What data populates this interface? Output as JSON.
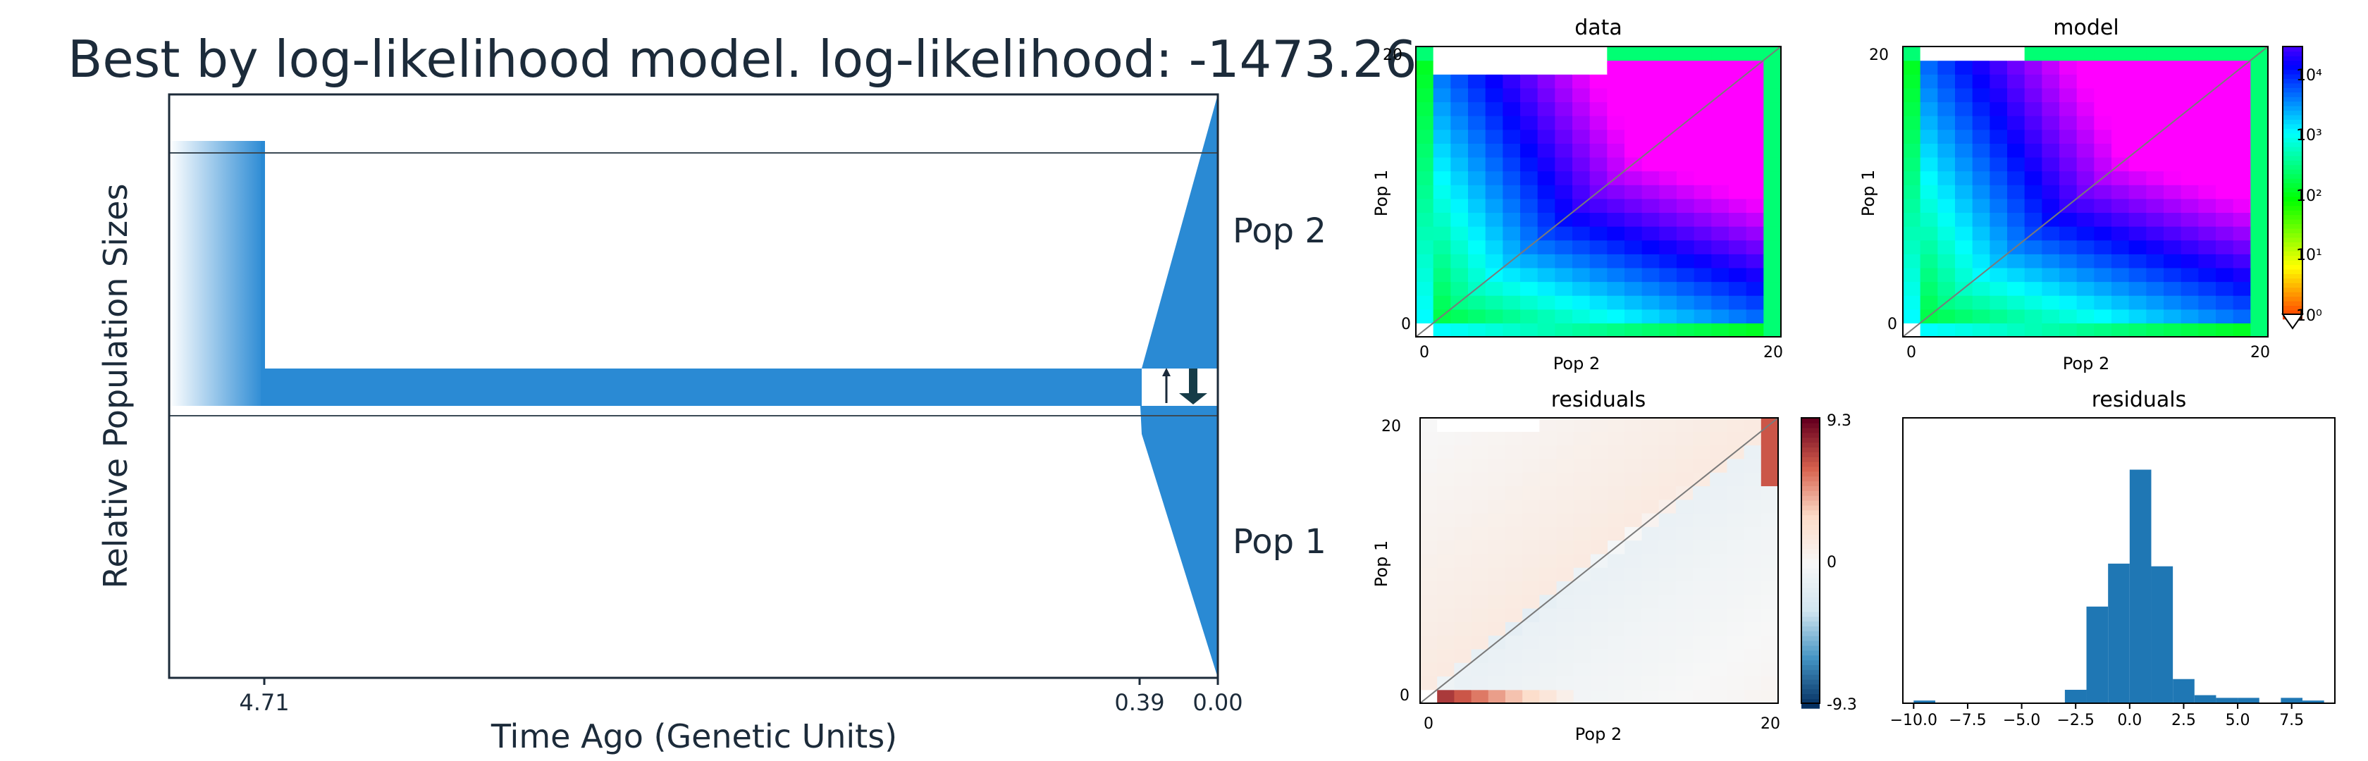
{
  "demography": {
    "title": "Best by log-likelihood model. log-likelihood: -1473.26",
    "ylabel": "Relative Population Sizes",
    "xlabel": "Time Ago (Genetic Units)",
    "ticks": [
      "4.71",
      "0.39",
      "0.00"
    ],
    "pop_labels": [
      "Pop 2",
      "Pop 1"
    ],
    "color": "#2a8ad4"
  },
  "chart_data": [
    {
      "type": "heatmap",
      "title": "data",
      "xlabel": "Pop 2",
      "ylabel": "Pop 1",
      "x_ticks": [
        "0",
        "20"
      ],
      "y_ticks": [
        "0",
        "20"
      ],
      "xlim": [
        0,
        20
      ],
      "ylim": [
        0,
        20
      ],
      "scale": "log"
    },
    {
      "type": "heatmap",
      "title": "model",
      "xlabel": "Pop 2",
      "ylabel": "Pop 1",
      "x_ticks": [
        "0",
        "20"
      ],
      "y_ticks": [
        "0",
        "20"
      ],
      "xlim": [
        0,
        20
      ],
      "ylim": [
        0,
        20
      ],
      "scale": "log",
      "colorbar_ticks": [
        "10⁰",
        "10¹",
        "10²",
        "10³",
        "10⁴"
      ]
    },
    {
      "type": "heatmap",
      "title": "residuals",
      "xlabel": "Pop 2",
      "ylabel": "Pop 1",
      "x_ticks": [
        "0",
        "20"
      ],
      "y_ticks": [
        "0",
        "20"
      ],
      "xlim": [
        0,
        20
      ],
      "ylim": [
        0,
        20
      ],
      "colorbar_ticks": [
        "9.3",
        "0",
        "-9.3"
      ],
      "vlim": [
        -9.3,
        9.3
      ]
    },
    {
      "type": "bar",
      "title": "residuals",
      "x_ticks": [
        "−10.0",
        "−7.5",
        "−5.0",
        "−2.5",
        "0.0",
        "2.5",
        "5.0",
        "7.5"
      ],
      "xlim": [
        -10.5,
        9.5
      ],
      "ylim": [
        0,
        1.0
      ],
      "bin_width": 1.0,
      "bins": [
        -9.5,
        -8.5,
        -7.5,
        -6.5,
        -5.5,
        -4.5,
        -3.5,
        -2.5,
        -1.5,
        -0.5,
        0.5,
        1.5,
        2.5,
        3.5,
        4.5,
        5.5,
        6.5,
        7.5,
        8.5
      ],
      "values": [
        0.01,
        0.0,
        0.0,
        0.0,
        0.0,
        0.0,
        0.0,
        0.05,
        0.36,
        0.52,
        0.87,
        0.51,
        0.09,
        0.03,
        0.02,
        0.02,
        0.0,
        0.02,
        0.01
      ],
      "color": "#1f77b4"
    }
  ]
}
